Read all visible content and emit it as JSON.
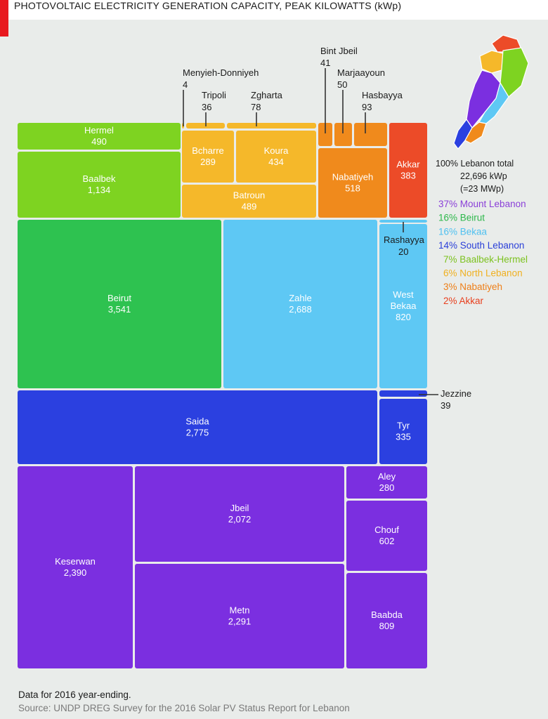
{
  "title": "PHOTOVOLTAIC ELECTRICITY GENERATION CAPACITY, PEAK KILOWATTS (kWp)",
  "chart_data": {
    "type": "treemap",
    "title": "PHOTOVOLTAIC ELECTRICITY GENERATION CAPACITY, PEAK KILOWATTS (kWp)",
    "unit": "kWp",
    "total": {
      "line1": "100% Lebanon total",
      "line2": "22,696 kWp",
      "line3": "(=23 MWp)"
    },
    "groups": [
      {
        "name": "Mount Lebanon",
        "share": "37%",
        "color": "#7b2fe0",
        "districts": [
          {
            "name": "Keserwan",
            "value": "2,390"
          },
          {
            "name": "Metn",
            "value": "2,291"
          },
          {
            "name": "Jbeil",
            "value": "2,072"
          },
          {
            "name": "Baabda",
            "value": "809"
          },
          {
            "name": "Chouf",
            "value": "602"
          },
          {
            "name": "Aley",
            "value": "280"
          }
        ]
      },
      {
        "name": "Beirut",
        "share": "16%",
        "color": "#2ec250",
        "districts": [
          {
            "name": "Beirut",
            "value": "3,541"
          }
        ]
      },
      {
        "name": "Bekaa",
        "share": "16%",
        "color": "#5ec8f4",
        "districts": [
          {
            "name": "Zahle",
            "value": "2,688"
          },
          {
            "name": "West Bekaa",
            "value": "820"
          },
          {
            "name": "Rashayya",
            "value": "20"
          }
        ]
      },
      {
        "name": "South Lebanon",
        "share": "14%",
        "color": "#2b40e0",
        "districts": [
          {
            "name": "Saida",
            "value": "2,775"
          },
          {
            "name": "Tyr",
            "value": "335"
          },
          {
            "name": "Jezzine",
            "value": "39"
          }
        ]
      },
      {
        "name": "Baalbek-Hermel",
        "share": "7%",
        "color": "#7ed321",
        "districts": [
          {
            "name": "Baalbek",
            "value": "1,134"
          },
          {
            "name": "Hermel",
            "value": "490"
          }
        ]
      },
      {
        "name": "North Lebanon",
        "share": "6%",
        "color": "#f5b82a",
        "districts": [
          {
            "name": "Batroun",
            "value": "489"
          },
          {
            "name": "Koura",
            "value": "434"
          },
          {
            "name": "Bcharre",
            "value": "289"
          },
          {
            "name": "Zgharta",
            "value": "78"
          },
          {
            "name": "Tripoli",
            "value": "36"
          },
          {
            "name": "Menyieh-Donniyeh",
            "value": "4"
          }
        ]
      },
      {
        "name": "Nabatiyeh",
        "share": "3%",
        "color": "#f08a1c",
        "districts": [
          {
            "name": "Nabatiyeh",
            "value": "518"
          },
          {
            "name": "Hasbayya",
            "value": "93"
          },
          {
            "name": "Marjaayoun",
            "value": "50"
          },
          {
            "name": "Bint Jbeil",
            "value": "41"
          }
        ]
      },
      {
        "name": "Akkar",
        "share": "2%",
        "color": "#ec4b28",
        "districts": [
          {
            "name": "Akkar",
            "value": "383"
          }
        ]
      }
    ]
  },
  "legend_label_colors": {
    "Mount Lebanon": "#8a3fd8",
    "Beirut": "#2eb84c",
    "Bekaa": "#4fc0f0",
    "South Lebanon": "#2b40d8",
    "Baalbek-Hermel": "#7cc21f",
    "North Lebanon": "#f0b020",
    "Nabatiyeh": "#ee7f18",
    "Akkar": "#e8401f"
  },
  "footnote": "Data for 2016 year-ending.",
  "source": "Source: UNDP DREG Survey for the 2016 Solar PV Status Report for Lebanon"
}
